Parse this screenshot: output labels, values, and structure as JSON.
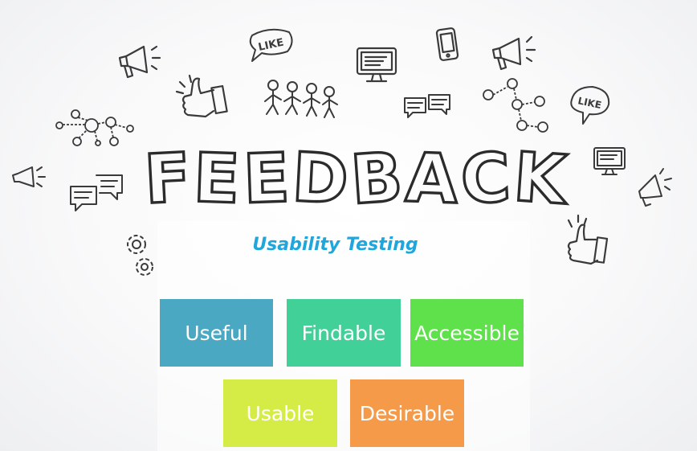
{
  "heading": "FEEDBACK",
  "subtitle": "Usability Testing",
  "like_label": "LIKE",
  "qualities": [
    {
      "label": "Useful",
      "color": "#4aa8c2"
    },
    {
      "label": "Findable",
      "color": "#41d198"
    },
    {
      "label": "Accessible",
      "color": "#5ee14a"
    },
    {
      "label": "Usable",
      "color": "#d4ec45"
    },
    {
      "label": "Desirable",
      "color": "#f59a48"
    }
  ],
  "doodle_icons": [
    "megaphone-icon",
    "like-bubble-icon",
    "thumbs-up-icon",
    "people-group-icon",
    "monitor-icon",
    "smartphone-icon",
    "chat-bubbles-icon",
    "network-nodes-icon",
    "gears-icon"
  ]
}
